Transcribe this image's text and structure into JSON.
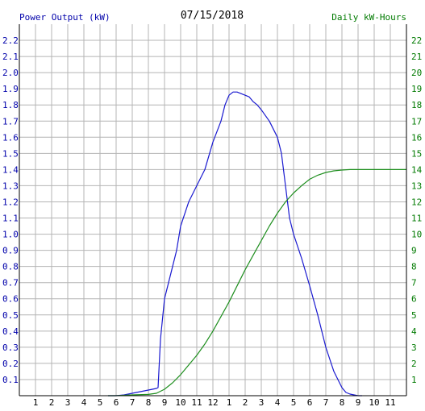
{
  "header": {
    "left_axis_title": "Power Output (kW)",
    "date": "07/15/2018",
    "right_axis_title": "Daily kW-Hours"
  },
  "colors": {
    "power": "#1a1ad0",
    "energy": "#1f8f1f",
    "left_axis_text": "#0000aa",
    "right_axis_text": "#007a00",
    "grid": "#b4b4b4",
    "axis": "#000000"
  },
  "chart_data": {
    "type": "line",
    "title": "07/15/2018",
    "grid": true,
    "x_tick_labels": [
      "1",
      "2",
      "3",
      "4",
      "5",
      "6",
      "7",
      "8",
      "9",
      "10",
      "11",
      "12",
      "1",
      "2",
      "3",
      "4",
      "5",
      "6",
      "7",
      "8",
      "9",
      "10",
      "11"
    ],
    "x_range_hours": [
      0,
      24
    ],
    "y_left": {
      "label": "Power Output (kW)",
      "range": [
        0,
        2.3
      ],
      "tick_labels": [
        "0.1",
        "0.2",
        "0.3",
        "0.4",
        "0.5",
        "0.6",
        "0.7",
        "0.8",
        "0.9",
        "1.0",
        "1.1",
        "1.2",
        "1.3",
        "1.4",
        "1.5",
        "1.6",
        "1.7",
        "1.8",
        "1.9",
        "2.0",
        "2.1",
        "2.2"
      ]
    },
    "y_right": {
      "label": "Daily kW-Hours",
      "range": [
        0,
        23
      ],
      "tick_labels": [
        "1",
        "2",
        "3",
        "4",
        "5",
        "6",
        "7",
        "8",
        "9",
        "10",
        "11",
        "12",
        "13",
        "14",
        "15",
        "16",
        "17",
        "18",
        "19",
        "20",
        "21",
        "22"
      ]
    },
    "series": [
      {
        "name": "Power Output (kW)",
        "axis": "left",
        "x": [
          5.5,
          6.0,
          6.5,
          7.0,
          7.5,
          8.0,
          8.5,
          8.6,
          8.75,
          9.0,
          9.25,
          9.5,
          9.75,
          10.0,
          10.5,
          11.0,
          11.5,
          12.0,
          12.5,
          12.75,
          13.0,
          13.25,
          13.5,
          13.75,
          14.0,
          14.25,
          14.5,
          14.75,
          15.0,
          15.5,
          16.0,
          16.25,
          16.5,
          16.75,
          17.0,
          17.5,
          18.0,
          18.5,
          19.0,
          19.5,
          20.0,
          20.25,
          20.5,
          20.75,
          21.0,
          21.25
        ],
        "y": [
          0.0,
          0.0,
          0.005,
          0.015,
          0.025,
          0.035,
          0.045,
          0.05,
          0.35,
          0.6,
          0.7,
          0.8,
          0.9,
          1.05,
          1.2,
          1.3,
          1.4,
          1.57,
          1.7,
          1.8,
          1.86,
          1.88,
          1.88,
          1.87,
          1.86,
          1.85,
          1.82,
          1.8,
          1.77,
          1.7,
          1.6,
          1.5,
          1.3,
          1.1,
          1.0,
          0.85,
          0.68,
          0.5,
          0.3,
          0.15,
          0.05,
          0.02,
          0.01,
          0.005,
          0.0,
          0.0
        ]
      },
      {
        "name": "Daily kW-Hours",
        "axis": "right",
        "x": [
          5.5,
          6.0,
          7.0,
          8.0,
          8.5,
          9.0,
          9.5,
          10.0,
          10.5,
          11.0,
          11.5,
          12.0,
          12.5,
          13.0,
          13.5,
          14.0,
          14.5,
          15.0,
          15.5,
          16.0,
          16.5,
          17.0,
          17.5,
          18.0,
          18.5,
          19.0,
          19.5,
          20.0,
          20.5,
          21.0,
          22.0,
          23.0,
          24.0
        ],
        "y": [
          0.0,
          0.0,
          0.05,
          0.08,
          0.15,
          0.4,
          0.8,
          1.3,
          1.9,
          2.5,
          3.2,
          4.0,
          4.9,
          5.8,
          6.8,
          7.8,
          8.7,
          9.6,
          10.5,
          11.3,
          12.0,
          12.55,
          13.0,
          13.4,
          13.65,
          13.82,
          13.92,
          13.97,
          14.0,
          14.0,
          14.0,
          14.0,
          14.0
        ]
      }
    ]
  }
}
